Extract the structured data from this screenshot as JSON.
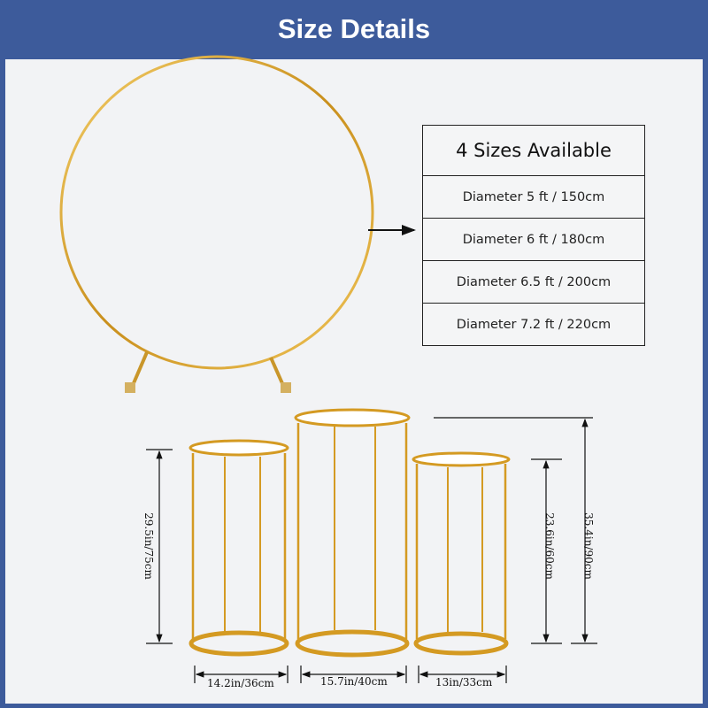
{
  "header": {
    "title": "Size Details"
  },
  "sizes": {
    "title": "4 Sizes Available",
    "rows": [
      "Diameter 5 ft / 150cm",
      "Diameter 6 ft / 180cm",
      "Diameter 6.5 ft / 200cm",
      "Diameter 7.2 ft / 220cm"
    ]
  },
  "dimensions": {
    "left_height": "29.5in/75cm",
    "middle_height": "35.4in/90cm",
    "right_height": "23.6in/60cm",
    "left_width": "14.2in/36cm",
    "middle_width": "15.7in/40cm",
    "right_width": "13in/33cm"
  },
  "colors": {
    "header": "#3d5b9b",
    "gold": "#d9a528",
    "background": "#f2f3f5"
  }
}
